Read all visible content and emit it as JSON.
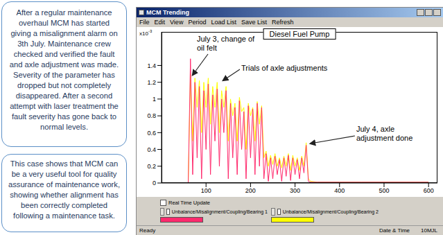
{
  "panels": [
    "After a regular maintenance overhaul MCM has started giving a misalignment alarm on 3th July. Maintenance crew checked and verified the fault and axle adjustment was made. Severity of the parameter has dropped but not completely disappeared. After a second attempt with laser treatment the fault severity has gone back to normal levels.",
    "This case shows that MCM can be a very useful tool for quality assurance of maintenance work, showing whether alignment has been correctly completed following a maintenance task."
  ],
  "window": {
    "title": "MCM Trending",
    "menu": [
      "File",
      "Edit",
      "View",
      "Period",
      "Load List",
      "Save List",
      "Refresh"
    ],
    "real_time_update": "Real Time Update",
    "status": [
      "Ready",
      "Date & Time",
      "10MJL"
    ]
  },
  "chart_data": {
    "type": "line",
    "title": "Diesel Fuel Pump",
    "y_label": {
      "base": "x10",
      "exponent": "-3"
    },
    "x": [
      60,
      65,
      70,
      75,
      80,
      85,
      90,
      95,
      100,
      105,
      110,
      115,
      120,
      125,
      130,
      135,
      140,
      145,
      150,
      155,
      160,
      165,
      170,
      175,
      180,
      185,
      190,
      195,
      200,
      205,
      210,
      215,
      220,
      225,
      230,
      235,
      240,
      245,
      250,
      255,
      260,
      265,
      270,
      275,
      280,
      285,
      290,
      295,
      300,
      305,
      310,
      315,
      320,
      325,
      330,
      335,
      350,
      400,
      450,
      500,
      550,
      600
    ],
    "series": [
      {
        "name": "Unbalance/Misalignment/Coupling/Bearing 1",
        "color": "#ff2a6d",
        "values": [
          0,
          1.48,
          0.1,
          1.2,
          0.3,
          1.15,
          0.05,
          1.1,
          0.4,
          1.18,
          0.1,
          1.05,
          0.5,
          1.12,
          0.2,
          1.0,
          0.6,
          1.1,
          0.05,
          0.95,
          0.3,
          0.9,
          0.1,
          0.98,
          0.4,
          0.85,
          0.05,
          0.92,
          0.3,
          0.88,
          0.1,
          0.95,
          0.2,
          0.9,
          0.05,
          0.35,
          0.02,
          0.3,
          0.05,
          0.32,
          0.1,
          0.28,
          0.02,
          0.3,
          0.08,
          0.33,
          0.03,
          0.3,
          0.1,
          0.28,
          0.05,
          0.3,
          0.12,
          0.45,
          0.02,
          0.01,
          0.01,
          0.01,
          0.01,
          0.01,
          0.01,
          0.01
        ]
      },
      {
        "name": "Unbalance/Misalignment/Coupling/Bearing 2",
        "color": "#ffff00",
        "values": [
          0,
          1.3,
          0.5,
          1.25,
          0.9,
          1.22,
          0.6,
          1.2,
          0.9,
          1.25,
          0.7,
          1.15,
          0.9,
          1.2,
          0.6,
          1.1,
          0.9,
          1.15,
          0.5,
          1.0,
          0.8,
          0.95,
          0.5,
          1.02,
          0.85,
          0.9,
          0.4,
          0.95,
          0.8,
          0.9,
          0.5,
          0.97,
          0.7,
          0.92,
          0.3,
          0.38,
          0.2,
          0.33,
          0.22,
          0.35,
          0.2,
          0.3,
          0.18,
          0.32,
          0.2,
          0.35,
          0.15,
          0.33,
          0.2,
          0.3,
          0.15,
          0.32,
          0.2,
          0.48,
          0.05,
          0.02,
          0.01,
          0.01,
          0.01,
          0.01,
          0.01,
          0.01
        ]
      }
    ],
    "xlim": [
      0,
      620
    ],
    "xticks": [
      100,
      200,
      300,
      400,
      500,
      600
    ],
    "ylim": [
      0,
      1.8
    ],
    "yticks": [
      0,
      0.2,
      0.4,
      0.6,
      0.8,
      1,
      1.2,
      1.4
    ],
    "grid": false,
    "legend": "bottom",
    "annotations": [
      {
        "lines": [
          "July 3, change of",
          "oil felt"
        ]
      },
      {
        "lines": [
          "Trials of axle adjustments"
        ]
      },
      {
        "lines": [
          "July 4, axle",
          "adjustment done"
        ]
      }
    ]
  }
}
